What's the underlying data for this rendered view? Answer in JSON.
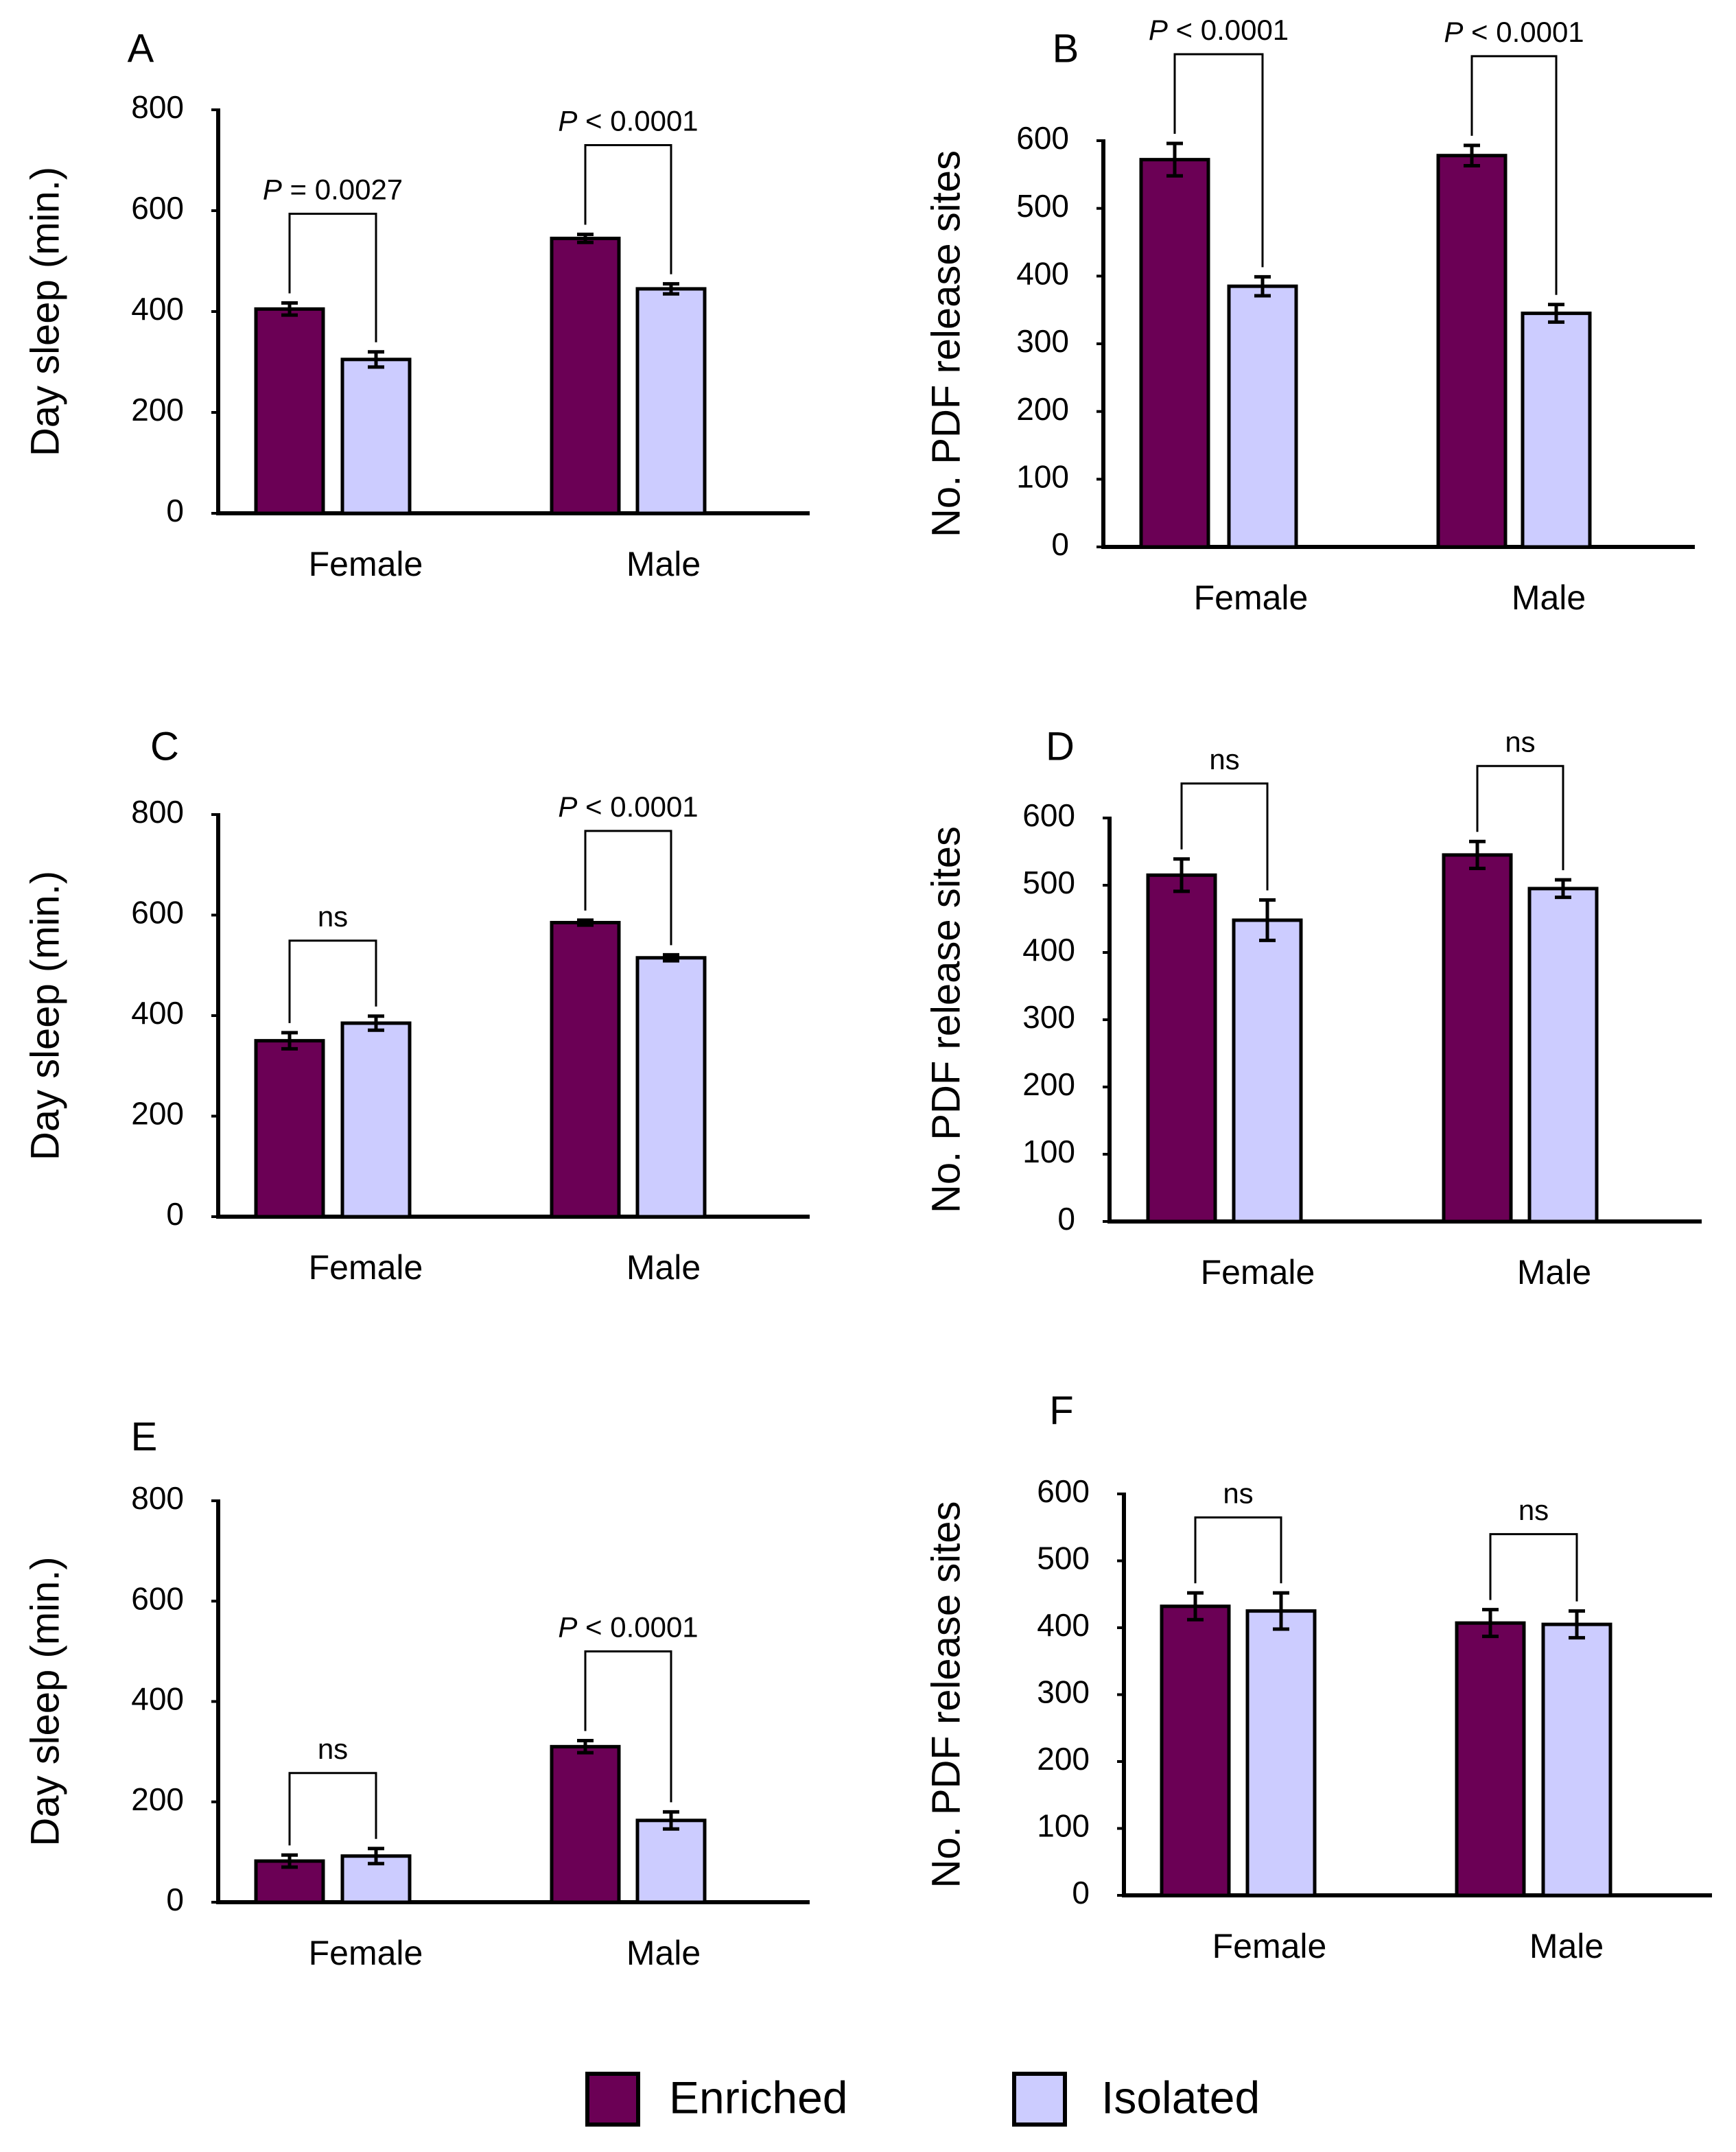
{
  "colors": {
    "enriched": "#6b0055",
    "isolated": "#ccccff",
    "axis": "#000000"
  },
  "legend": {
    "items": [
      {
        "label": "Enriched",
        "color": "#6b0055"
      },
      {
        "label": "Isolated",
        "color": "#ccccff"
      }
    ]
  },
  "chart_data": [
    {
      "id": "A",
      "type": "bar",
      "panel_label": "A",
      "ylabel": "Day sleep (min.)",
      "ylim": [
        0,
        800
      ],
      "yticks": [
        0,
        200,
        400,
        600,
        800
      ],
      "categories": [
        "Female",
        "Male"
      ],
      "series": [
        {
          "name": "Enriched",
          "values": [
            405,
            545
          ],
          "errors": [
            12,
            8
          ]
        },
        {
          "name": "Isolated",
          "values": [
            305,
            445
          ],
          "errors": [
            15,
            10
          ]
        }
      ],
      "comparisons": [
        {
          "category": "Female",
          "label": "P = 0.0027"
        },
        {
          "category": "Male",
          "label": "P < 0.0001"
        }
      ]
    },
    {
      "id": "B",
      "type": "bar",
      "panel_label": "B",
      "ylabel": "No. PDF release sites",
      "ylim": [
        0,
        600
      ],
      "yticks": [
        0,
        100,
        200,
        300,
        400,
        500,
        600
      ],
      "categories": [
        "Female",
        "Male"
      ],
      "series": [
        {
          "name": "Enriched",
          "values": [
            572,
            578
          ],
          "errors": [
            24,
            15
          ]
        },
        {
          "name": "Isolated",
          "values": [
            385,
            345
          ],
          "errors": [
            14,
            13
          ]
        }
      ],
      "comparisons": [
        {
          "category": "Female",
          "label": "P < 0.0001"
        },
        {
          "category": "Male",
          "label": "P < 0.0001"
        }
      ]
    },
    {
      "id": "C",
      "type": "bar",
      "panel_label": "C",
      "ylabel": "Day sleep (min.)",
      "ylim": [
        0,
        800
      ],
      "yticks": [
        0,
        200,
        400,
        600,
        800
      ],
      "categories": [
        "Female",
        "Male"
      ],
      "series": [
        {
          "name": "Enriched",
          "values": [
            350,
            585
          ],
          "errors": [
            16,
            5
          ]
        },
        {
          "name": "Isolated",
          "values": [
            385,
            515
          ],
          "errors": [
            14,
            6
          ]
        }
      ],
      "comparisons": [
        {
          "category": "Female",
          "label": "ns"
        },
        {
          "category": "Male",
          "label": "P < 0.0001"
        }
      ]
    },
    {
      "id": "D",
      "type": "bar",
      "panel_label": "D",
      "ylabel": "No. PDF release sites",
      "ylim": [
        0,
        600
      ],
      "yticks": [
        0,
        100,
        200,
        300,
        400,
        500,
        600
      ],
      "categories": [
        "Female",
        "Male"
      ],
      "series": [
        {
          "name": "Enriched",
          "values": [
            515,
            545
          ],
          "errors": [
            24,
            20
          ]
        },
        {
          "name": "Isolated",
          "values": [
            448,
            495
          ],
          "errors": [
            30,
            13
          ]
        }
      ],
      "comparisons": [
        {
          "category": "Female",
          "label": "ns"
        },
        {
          "category": "Male",
          "label": "ns"
        }
      ]
    },
    {
      "id": "E",
      "type": "bar",
      "panel_label": "E",
      "ylabel": "Day sleep (min.)",
      "ylim": [
        0,
        800
      ],
      "yticks": [
        0,
        200,
        400,
        600,
        800
      ],
      "categories": [
        "Female",
        "Male"
      ],
      "series": [
        {
          "name": "Enriched",
          "values": [
            82,
            310
          ],
          "errors": [
            12,
            12
          ]
        },
        {
          "name": "Isolated",
          "values": [
            92,
            163
          ],
          "errors": [
            15,
            17
          ]
        }
      ],
      "comparisons": [
        {
          "category": "Female",
          "label": "ns"
        },
        {
          "category": "Male",
          "label": "P < 0.0001"
        }
      ]
    },
    {
      "id": "F",
      "type": "bar",
      "panel_label": "F",
      "ylabel": "No. PDF release sites",
      "ylim": [
        0,
        600
      ],
      "yticks": [
        0,
        100,
        200,
        300,
        400,
        500,
        600
      ],
      "categories": [
        "Female",
        "Male"
      ],
      "series": [
        {
          "name": "Enriched",
          "values": [
            432,
            407
          ],
          "errors": [
            20,
            20
          ]
        },
        {
          "name": "Isolated",
          "values": [
            425,
            405
          ],
          "errors": [
            27,
            20
          ]
        }
      ],
      "comparisons": [
        {
          "category": "Female",
          "label": "ns"
        },
        {
          "category": "Male",
          "label": "ns"
        }
      ]
    }
  ]
}
